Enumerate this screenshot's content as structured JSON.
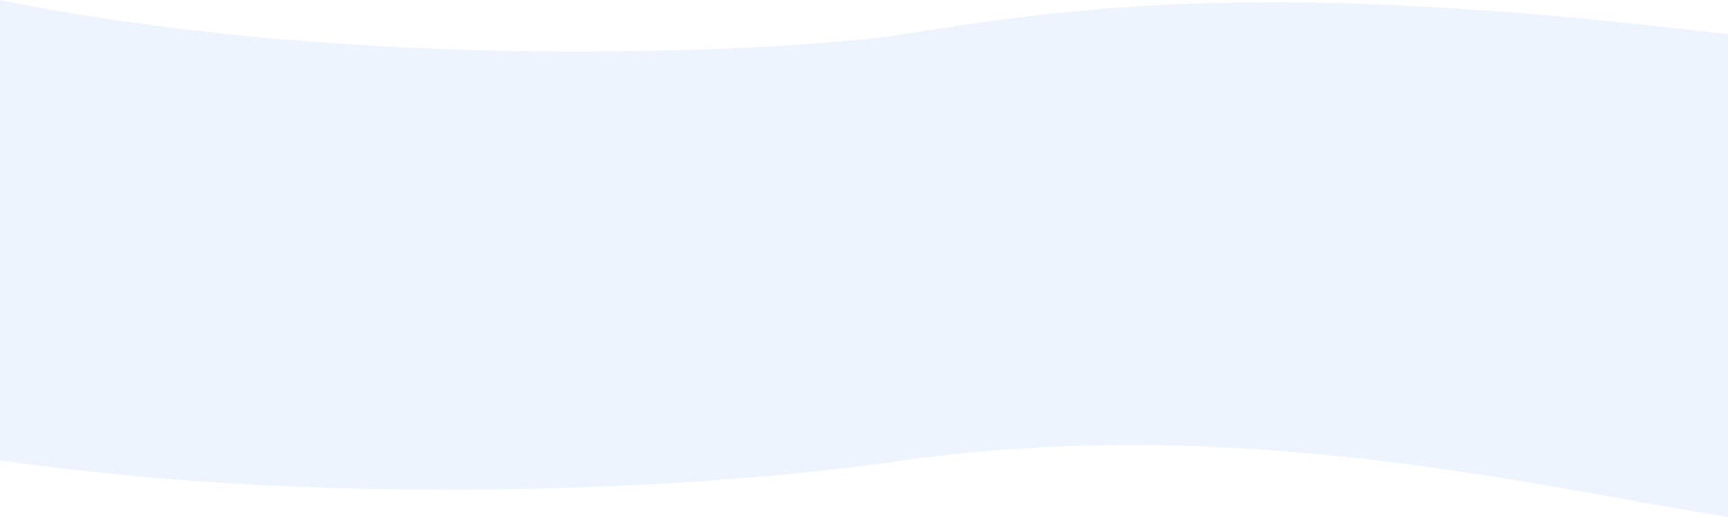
{
  "banner": {
    "fill_color": "#EEF4FE",
    "background_color": "#FFFFFF"
  }
}
